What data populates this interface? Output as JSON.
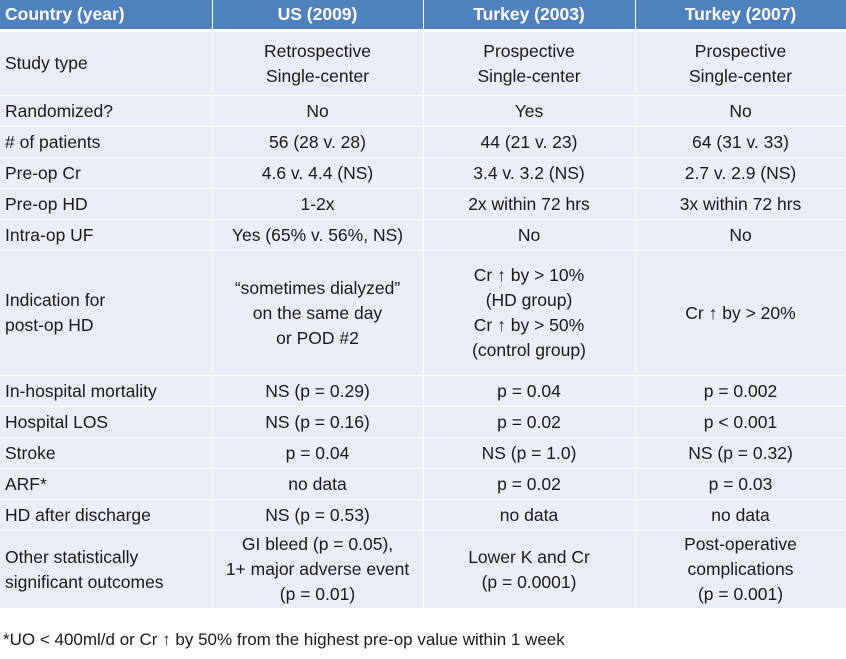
{
  "table": {
    "headers": [
      "Country (year)",
      "US (2009)",
      "Turkey (2003)",
      "Turkey (2007)"
    ],
    "rows": [
      {
        "label": [
          "Study type"
        ],
        "cells": [
          [
            "Retrospective",
            "Single-center"
          ],
          [
            "Prospective",
            "Single-center"
          ],
          [
            "Prospective",
            "Single-center"
          ]
        ]
      },
      {
        "label": [
          "Randomized?"
        ],
        "cells": [
          [
            "No"
          ],
          [
            "Yes"
          ],
          [
            "No"
          ]
        ]
      },
      {
        "label": [
          "# of patients"
        ],
        "cells": [
          [
            "56 (28 v. 28)"
          ],
          [
            "44 (21 v. 23)"
          ],
          [
            "64 (31 v. 33)"
          ]
        ]
      },
      {
        "label": [
          "Pre-op Cr"
        ],
        "cells": [
          [
            "4.6 v. 4.4 (NS)"
          ],
          [
            "3.4 v. 3.2 (NS)"
          ],
          [
            "2.7 v. 2.9 (NS)"
          ]
        ]
      },
      {
        "label": [
          "Pre-op HD"
        ],
        "cells": [
          [
            "1-2x"
          ],
          [
            "2x within 72 hrs"
          ],
          [
            "3x within 72 hrs"
          ]
        ]
      },
      {
        "label": [
          "Intra-op UF"
        ],
        "cells": [
          [
            "Yes (65% v. 56%, NS)"
          ],
          [
            "No"
          ],
          [
            "No"
          ]
        ]
      },
      {
        "label": [
          "Indication for",
          "post-op HD"
        ],
        "cells": [
          [
            "“sometimes dialyzed”",
            "on the same day",
            "or POD #2"
          ],
          [
            "Cr ↑ by > 10%",
            "(HD group)",
            "Cr ↑ by > 50%",
            "(control group)"
          ],
          [
            "Cr ↑ by > 20%"
          ]
        ]
      },
      {
        "label": [
          "In-hospital mortality"
        ],
        "cells": [
          [
            "NS (p = 0.29)"
          ],
          [
            "p = 0.04"
          ],
          [
            "p = 0.002"
          ]
        ]
      },
      {
        "label": [
          "Hospital LOS"
        ],
        "cells": [
          [
            "NS (p = 0.16)"
          ],
          [
            "p = 0.02"
          ],
          [
            "p < 0.001"
          ]
        ]
      },
      {
        "label": [
          "Stroke"
        ],
        "cells": [
          [
            "p = 0.04"
          ],
          [
            "NS (p = 1.0)"
          ],
          [
            "NS (p = 0.32)"
          ]
        ]
      },
      {
        "label": [
          "ARF*"
        ],
        "cells": [
          [
            "no data"
          ],
          [
            "p = 0.02"
          ],
          [
            "p = 0.03"
          ]
        ]
      },
      {
        "label": [
          "HD after discharge"
        ],
        "cells": [
          [
            "NS (p = 0.53)"
          ],
          [
            "no data"
          ],
          [
            "no data"
          ]
        ]
      },
      {
        "label": [
          "Other statistically",
          "significant outcomes"
        ],
        "cells": [
          [
            "GI bleed (p = 0.05),",
            "1+ major adverse event",
            "(p = 0.01)"
          ],
          [
            "Lower K and Cr",
            "(p = 0.0001)"
          ],
          [
            "Post-operative",
            "complications",
            "(p = 0.001)"
          ]
        ]
      }
    ]
  },
  "footnote": "*UO < 400ml/d or Cr ↑ by 50% from the highest pre-op value within 1 week",
  "colors": {
    "header_bg": "#4f81bd",
    "header_text": "#ffffff",
    "cell_bg": "#e8edf6"
  }
}
